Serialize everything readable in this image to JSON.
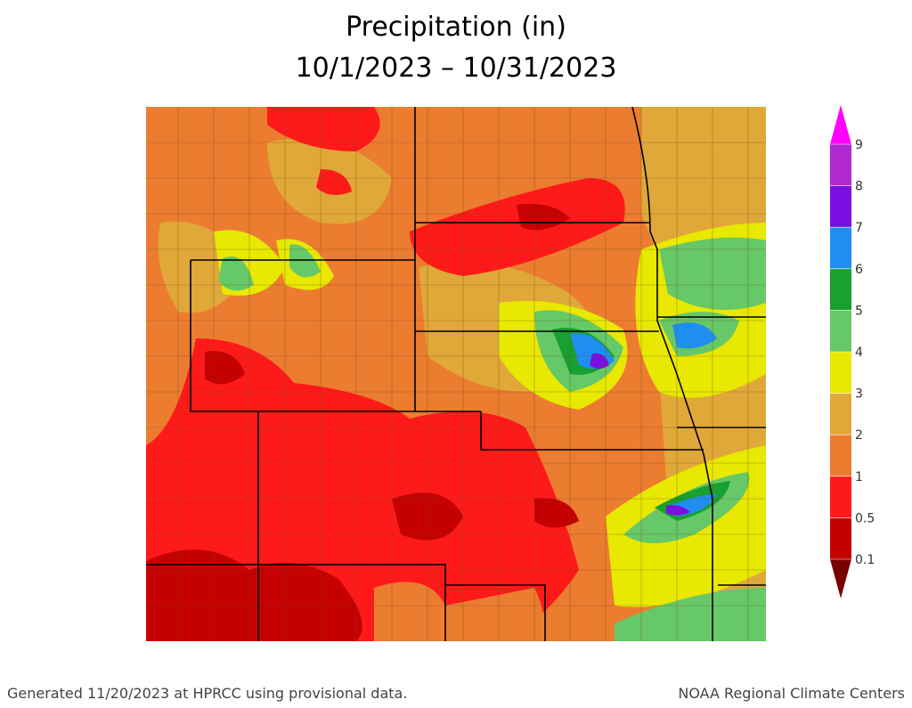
{
  "header": {
    "title_line1": "Precipitation (in)",
    "title_line2": "10/1/2023 – 10/31/2023"
  },
  "legend": {
    "ticks": [
      9,
      8,
      7,
      6,
      5,
      4,
      3,
      2,
      1,
      0.5,
      0.1
    ],
    "top_color": "#ff00ff",
    "bottom_color": "#7a0000",
    "colors": [
      "#b028d0",
      "#7a10e0",
      "#1e8fef",
      "#18a030",
      "#66c866",
      "#e8e800",
      "#e0a838",
      "#ec7c30",
      "#ff1a1a",
      "#c40000"
    ]
  },
  "footer": {
    "left": "Generated 11/20/2023 at HPRCC using provisional data.",
    "right": "NOAA Regional Climate Centers"
  }
}
